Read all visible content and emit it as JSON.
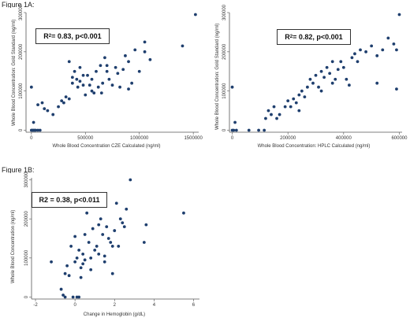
{
  "figure_1a_label": "Figure 1A:",
  "figure_1b_label": "Figure 1B:",
  "colors": {
    "point": "#1f3f6e",
    "axis": "#555555",
    "grid": "#d8d8d8",
    "box_border": "#333333"
  },
  "chart_data": [
    {
      "id": "A1",
      "type": "scatter",
      "annotation_prefix": "R",
      "annotation_sup": "2",
      "annotation_rest": " = 0.83, p<0.001",
      "xlabel": "Whole Blood Concentration CZE Calculated (ng/ml)",
      "ylabel": "Whole Blood Concentration: Gold Standard (ng/ml)",
      "xlim": [
        -50000,
        1550000
      ],
      "ylim": [
        -5000,
        300000
      ],
      "xticks": [
        0,
        500000,
        1000000,
        1500000
      ],
      "xtick_labels": [
        "0",
        "500000",
        "1000000",
        "1500000"
      ],
      "yticks": [
        0,
        100000,
        200000,
        300000
      ],
      "ytick_labels": [
        "0",
        "100000",
        "200000",
        "300000"
      ],
      "x": [
        0,
        10000,
        20000,
        30000,
        40000,
        60000,
        80000,
        0,
        20000,
        120000,
        150000,
        200000,
        100000,
        60000,
        250000,
        280000,
        300000,
        320000,
        350000,
        380000,
        400000,
        420000,
        430000,
        450000,
        480000,
        500000,
        520000,
        540000,
        560000,
        580000,
        600000,
        620000,
        640000,
        660000,
        680000,
        700000,
        720000,
        750000,
        780000,
        800000,
        820000,
        850000,
        870000,
        900000,
        930000,
        960000,
        1000000,
        1050000,
        1100000,
        1400000,
        1520000,
        350000,
        450000,
        560000,
        700000,
        650000,
        900000,
        1050000,
        480000,
        380000
      ],
      "y": [
        0,
        0,
        0,
        0,
        0,
        0,
        0,
        110000,
        20000,
        55000,
        50000,
        40000,
        70000,
        65000,
        60000,
        75000,
        70000,
        85000,
        80000,
        120000,
        150000,
        130000,
        110000,
        160000,
        140000,
        90000,
        140000,
        115000,
        130000,
        95000,
        150000,
        110000,
        165000,
        120000,
        185000,
        150000,
        130000,
        115000,
        160000,
        145000,
        110000,
        155000,
        190000,
        175000,
        120000,
        205000,
        150000,
        200000,
        180000,
        215000,
        295000,
        175000,
        125000,
        100000,
        165000,
        95000,
        105000,
        225000,
        115000,
        135000
      ]
    },
    {
      "id": "A2",
      "type": "scatter",
      "annotation_prefix": "R",
      "annotation_sup": "2",
      "annotation_rest": " = 0.82, p<0.001",
      "xlabel": "Whole Blood Concentration: HPLC Calculated (ng/ml)",
      "ylabel": "Whole Blood Concentration: Gold Standard (ng/ml)",
      "xlim": [
        -10000,
        610000
      ],
      "ylim": [
        -5000,
        300000
      ],
      "xticks": [
        0,
        200000,
        400000,
        600000
      ],
      "xtick_labels": [
        "0",
        "200000",
        "400000",
        "600000"
      ],
      "yticks": [
        0,
        100000,
        200000,
        300000
      ],
      "ytick_labels": [
        "0",
        "100000",
        "200000",
        "300000"
      ],
      "x": [
        0,
        5000,
        15000,
        60000,
        95000,
        115000,
        0,
        10000,
        130000,
        140000,
        160000,
        170000,
        190000,
        200000,
        210000,
        220000,
        230000,
        240000,
        250000,
        260000,
        270000,
        280000,
        290000,
        300000,
        310000,
        320000,
        330000,
        340000,
        350000,
        360000,
        370000,
        380000,
        390000,
        400000,
        410000,
        420000,
        430000,
        440000,
        450000,
        460000,
        480000,
        500000,
        520000,
        540000,
        560000,
        580000,
        590000,
        600000,
        120000,
        150000,
        240000,
        320000,
        360000,
        520000,
        590000
      ],
      "y": [
        0,
        0,
        0,
        0,
        0,
        0,
        110000,
        20000,
        50000,
        40000,
        30000,
        40000,
        60000,
        75000,
        60000,
        80000,
        70000,
        90000,
        100000,
        85000,
        110000,
        130000,
        120000,
        140000,
        110000,
        150000,
        135000,
        160000,
        145000,
        175000,
        130000,
        155000,
        175000,
        160000,
        130000,
        115000,
        185000,
        195000,
        175000,
        205000,
        200000,
        215000,
        190000,
        205000,
        235000,
        220000,
        205000,
        295000,
        30000,
        60000,
        50000,
        100000,
        120000,
        120000,
        105000
      ]
    },
    {
      "id": "B",
      "type": "scatter",
      "annotation_prefix": "R2 = 0.38, p<0.011",
      "annotation_sup": "",
      "annotation_rest": "",
      "xlabel": "Change in Hemoglobin (g/dL)",
      "ylabel": "Whole Blood Concentration (ng/ml)",
      "xlim": [
        -2.2,
        6.3
      ],
      "ylim": [
        -5000,
        305000
      ],
      "xticks": [
        -2,
        0,
        2,
        4,
        6
      ],
      "xtick_labels": [
        "-2",
        "0",
        "2",
        "4",
        "6"
      ],
      "yticks": [
        0,
        100000,
        200000,
        300000
      ],
      "ytick_labels": [
        "0",
        "100000",
        "200000",
        "300000"
      ],
      "x": [
        -1.2,
        -0.7,
        -0.5,
        -0.3,
        0.1,
        0.2,
        -0.4,
        -0.2,
        0.0,
        0.1,
        0.2,
        0.3,
        0.4,
        0.5,
        0.6,
        0.7,
        0.8,
        0.9,
        1.0,
        1.1,
        1.2,
        1.3,
        1.4,
        1.5,
        1.6,
        1.7,
        1.8,
        1.9,
        2.0,
        2.1,
        2.2,
        2.3,
        2.5,
        2.6,
        2.8,
        3.5,
        3.6,
        5.5,
        -0.5,
        -0.1,
        0.3,
        0.5,
        0.8,
        1.2,
        1.5,
        1.9,
        2.4,
        -0.6,
        0.0,
        0.4
      ],
      "y": [
        90000,
        20000,
        60000,
        55000,
        0,
        0,
        80000,
        130000,
        90000,
        100000,
        120000,
        75000,
        110000,
        160000,
        215000,
        140000,
        100000,
        175000,
        120000,
        130000,
        110000,
        200000,
        160000,
        90000,
        180000,
        150000,
        140000,
        60000,
        170000,
        240000,
        130000,
        200000,
        180000,
        225000,
        300000,
        140000,
        185000,
        215000,
        0,
        0,
        50000,
        95000,
        70000,
        185000,
        105000,
        130000,
        190000,
        5000,
        155000,
        85000
      ]
    }
  ]
}
